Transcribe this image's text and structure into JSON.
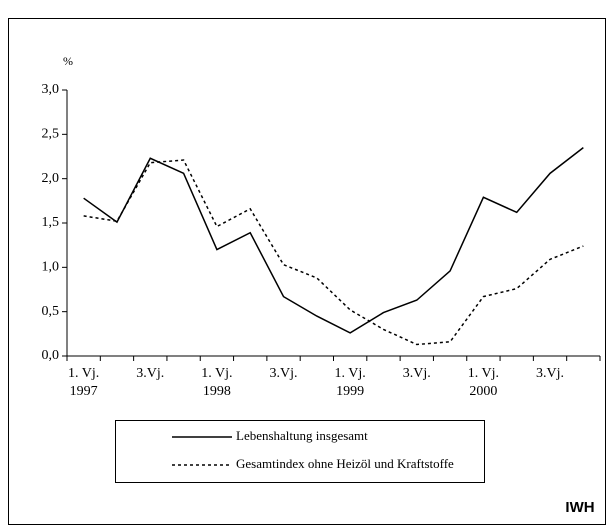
{
  "chart_data": {
    "type": "line",
    "y_unit": "%",
    "categories": [
      "1. Vj.",
      null,
      "3.Vj.",
      null,
      "1. Vj.",
      null,
      "3.Vj.",
      null,
      "1. Vj.",
      null,
      "3.Vj.",
      null,
      "1. Vj.",
      null,
      "3.Vj.",
      null
    ],
    "category_years": [
      "1997",
      null,
      null,
      null,
      "1998",
      null,
      null,
      null,
      "1999",
      null,
      null,
      null,
      "2000",
      null,
      null,
      null
    ],
    "series": [
      {
        "name": "Lebenshaltung insgesamt",
        "color": "#000000",
        "dash": "solid",
        "values": [
          1.78,
          1.51,
          2.23,
          2.06,
          1.2,
          1.39,
          0.67,
          0.45,
          0.26,
          0.49,
          0.63,
          0.96,
          1.79,
          1.62,
          2.06,
          2.35
        ]
      },
      {
        "name": "Gesamtindex ohne Heizöl und Kraftstoffe",
        "color": "#000000",
        "dash": "dotted",
        "values": [
          1.58,
          1.52,
          2.18,
          2.21,
          1.46,
          1.66,
          1.03,
          0.88,
          0.52,
          0.3,
          0.13,
          0.16,
          0.67,
          0.76,
          1.09,
          1.24
        ]
      }
    ],
    "ylim": [
      0,
      3
    ],
    "yticks": [
      {
        "value": 0,
        "label": "0,0"
      },
      {
        "value": 0.5,
        "label": "0,5"
      },
      {
        "value": 1,
        "label": "1,0"
      },
      {
        "value": 1.5,
        "label": "1,5"
      },
      {
        "value": 2,
        "label": "2,0"
      },
      {
        "value": 2.5,
        "label": "2,5"
      },
      {
        "value": 3,
        "label": "3,0"
      }
    ],
    "grid": false,
    "legend": "bottom",
    "source": "IWH"
  }
}
